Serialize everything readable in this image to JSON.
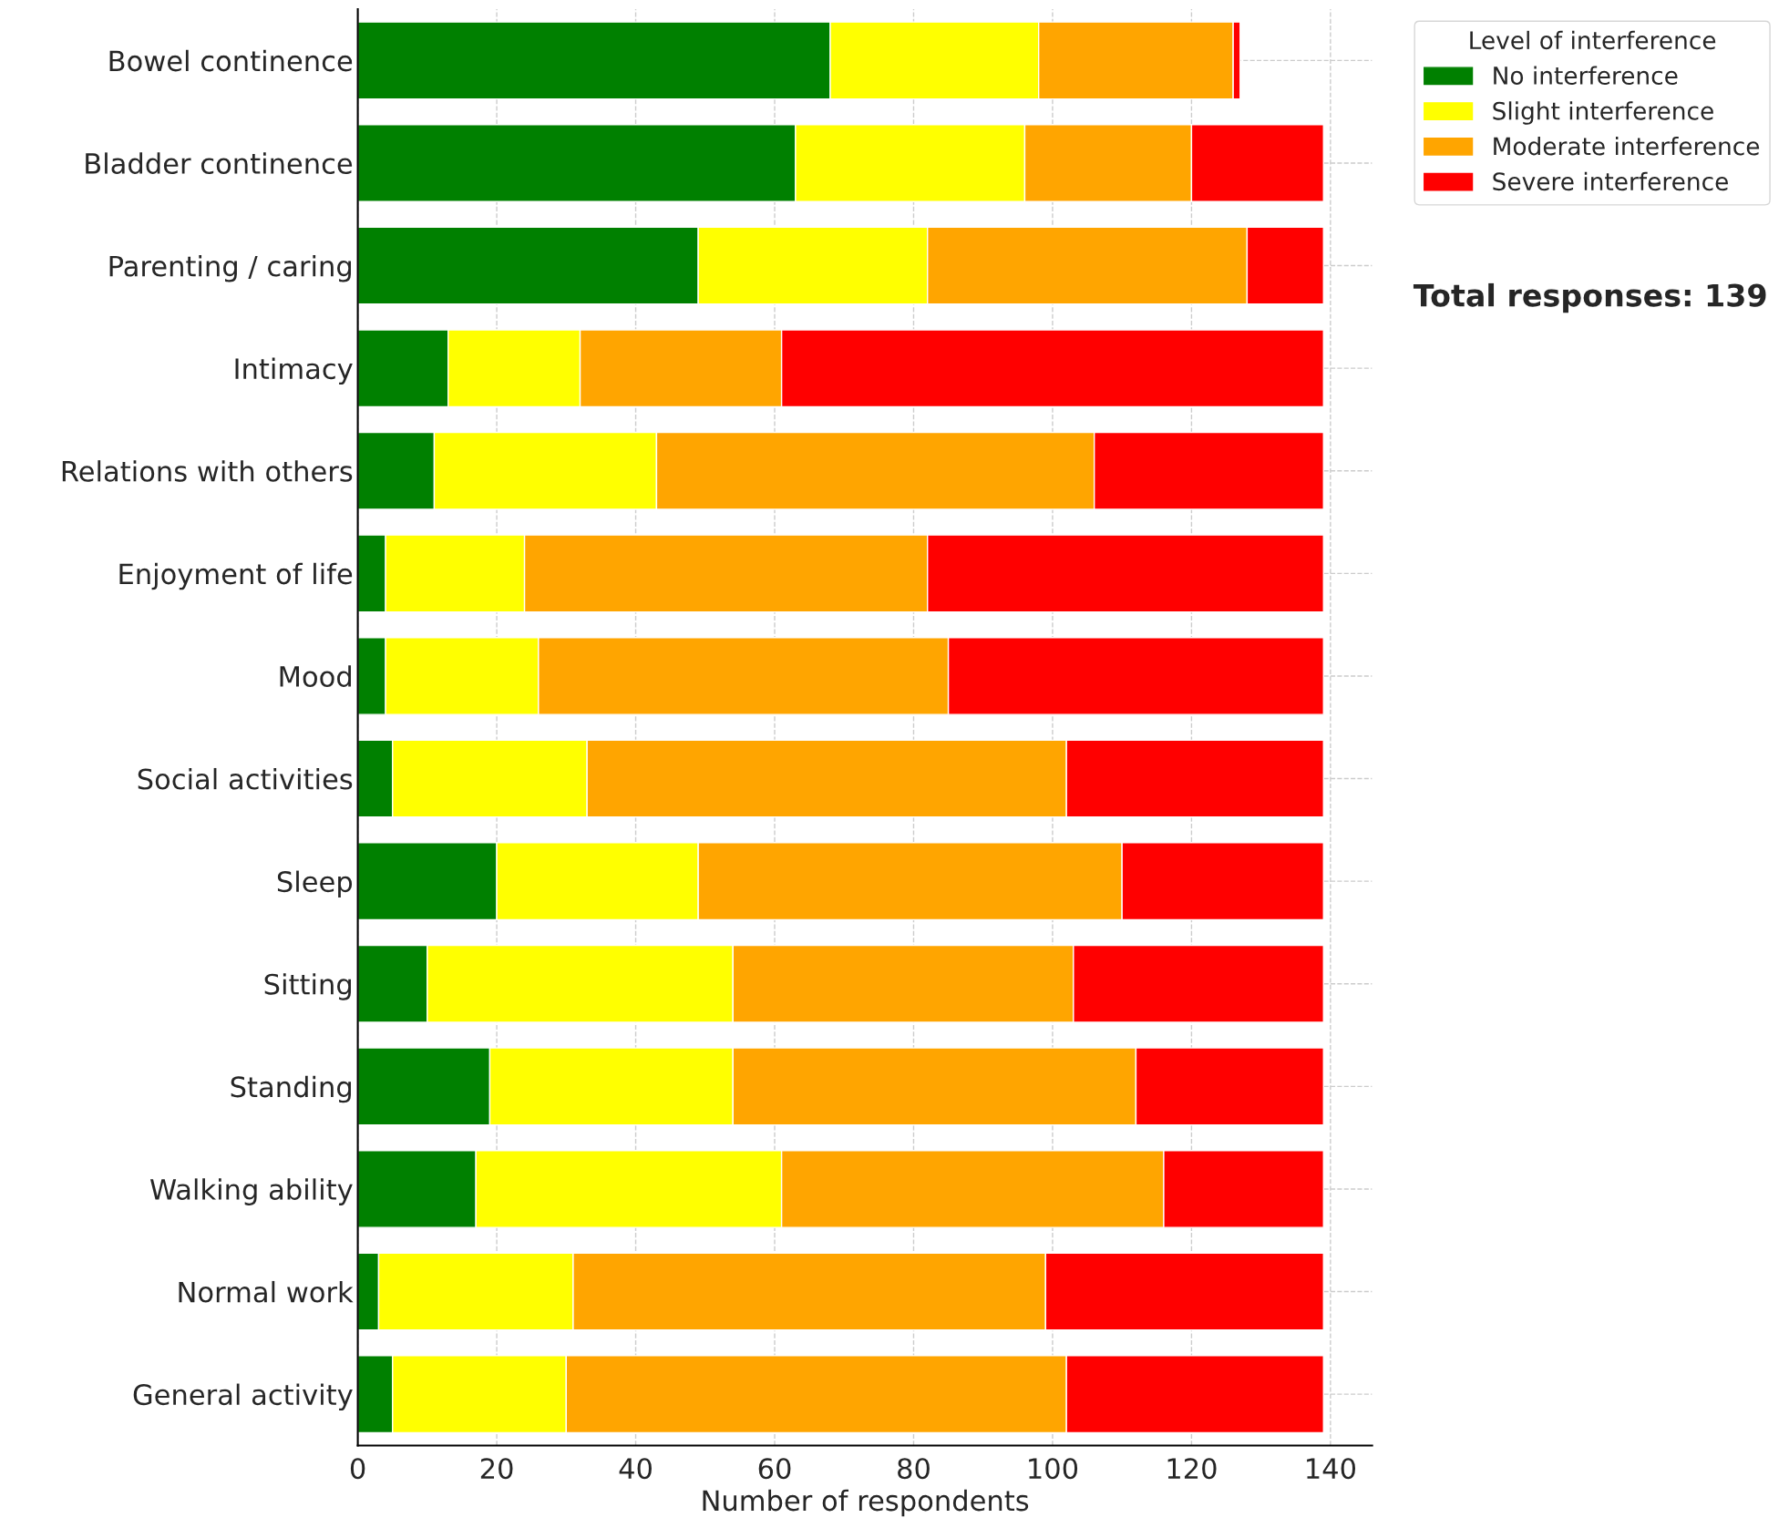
{
  "chart_data": {
    "type": "bar",
    "orientation": "horizontal",
    "stacked": true,
    "categories": [
      "Bowel continence",
      "Bladder continence",
      "Parenting / caring",
      "Intimacy",
      "Relations with others",
      "Enjoyment of life",
      "Mood",
      "Social activities",
      "Sleep",
      "Sitting",
      "Standing",
      "Walking ability",
      "Normal work",
      "General activity"
    ],
    "series": [
      {
        "name": "No interference",
        "color": "#008000",
        "values": [
          68,
          63,
          49,
          13,
          11,
          4,
          4,
          5,
          20,
          10,
          19,
          17,
          3,
          5
        ]
      },
      {
        "name": "Slight interference",
        "color": "#ffff00",
        "values": [
          30,
          33,
          33,
          19,
          32,
          20,
          22,
          28,
          29,
          44,
          35,
          44,
          28,
          25
        ]
      },
      {
        "name": "Moderate interference",
        "color": "#ffa500",
        "values": [
          28,
          24,
          46,
          29,
          63,
          58,
          59,
          69,
          61,
          49,
          58,
          55,
          68,
          72
        ]
      },
      {
        "name": "Severe interference",
        "color": "#ff0000",
        "values": [
          1,
          19,
          11,
          78,
          33,
          57,
          54,
          37,
          29,
          36,
          27,
          23,
          40,
          37
        ]
      }
    ],
    "xlabel": "Number of respondents",
    "legend_title": "Level of interference",
    "legend": "top right",
    "xlim": [
      0,
      146
    ],
    "xticks": [
      0,
      20,
      40,
      60,
      80,
      100,
      120,
      140
    ],
    "grid": true,
    "annotations": [
      "Total responses: 139"
    ]
  }
}
